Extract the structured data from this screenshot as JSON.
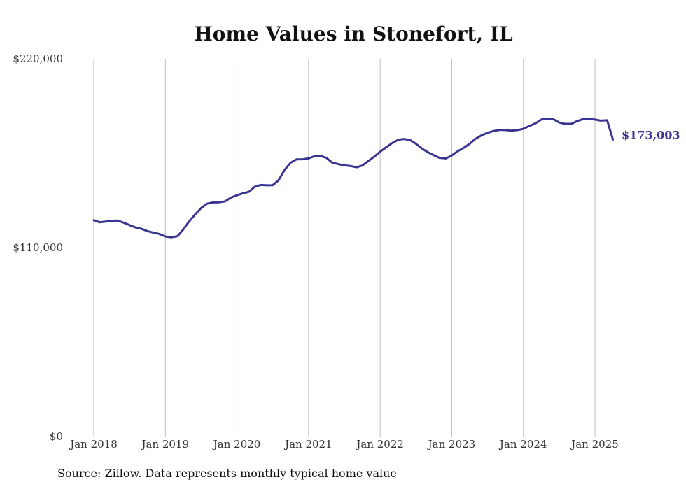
{
  "chart_data": {
    "type": "line",
    "title": "Home Values in Stonefort, IL",
    "source": "Source: Zillow. Data represents monthly typical home value",
    "ylim": [
      0,
      220000
    ],
    "y_ticks": [
      {
        "value": 0,
        "label": "$0"
      },
      {
        "value": 110000,
        "label": "$110,000"
      },
      {
        "value": 220000,
        "label": "$220,000"
      }
    ],
    "x_ticks": [
      {
        "value": 2018.0,
        "label": "Jan 2018"
      },
      {
        "value": 2019.0,
        "label": "Jan 2019"
      },
      {
        "value": 2020.0,
        "label": "Jan 2020"
      },
      {
        "value": 2021.0,
        "label": "Jan 2021"
      },
      {
        "value": 2022.0,
        "label": "Jan 2022"
      },
      {
        "value": 2023.0,
        "label": "Jan 2023"
      },
      {
        "value": 2024.0,
        "label": "Jan 2024"
      },
      {
        "value": 2025.0,
        "label": "Jan 2025"
      }
    ],
    "xlim": [
      2018.0,
      2025.25
    ],
    "grid": "vertical",
    "line_color": "#3a3491",
    "end_label": "$173,003",
    "series": [
      {
        "x": [
          2018.0,
          2018.08,
          2018.17,
          2018.25,
          2018.33,
          2018.42,
          2018.5,
          2018.58,
          2018.67,
          2018.75,
          2018.83,
          2018.92,
          2019.0,
          2019.08,
          2019.17,
          2019.25,
          2019.33,
          2019.42,
          2019.5,
          2019.58,
          2019.67,
          2019.75,
          2019.83,
          2019.92,
          2020.0,
          2020.08,
          2020.17,
          2020.25,
          2020.33,
          2020.42,
          2020.5,
          2020.58,
          2020.67,
          2020.75,
          2020.83,
          2020.92,
          2021.0,
          2021.08,
          2021.17,
          2021.25,
          2021.33,
          2021.42,
          2021.5,
          2021.58,
          2021.67,
          2021.75,
          2021.83,
          2021.92,
          2022.0,
          2022.08,
          2022.17,
          2022.25,
          2022.33,
          2022.42,
          2022.5,
          2022.58,
          2022.67,
          2022.75,
          2022.83,
          2022.92,
          2023.0,
          2023.08,
          2023.17,
          2023.25,
          2023.33,
          2023.42,
          2023.5,
          2023.58,
          2023.67,
          2023.75,
          2023.83,
          2023.92,
          2024.0,
          2024.08,
          2024.17,
          2024.25,
          2024.33,
          2024.42,
          2024.5,
          2024.58,
          2024.67,
          2024.75,
          2024.83,
          2024.92,
          2025.0,
          2025.08,
          2025.17,
          2025.25
        ],
        "y": [
          126000,
          124800,
          125200,
          125600,
          125800,
          124500,
          123100,
          121800,
          120900,
          119600,
          118800,
          117900,
          116500,
          116000,
          116700,
          120600,
          125100,
          129500,
          133000,
          135600,
          136300,
          136400,
          136900,
          139200,
          140500,
          141600,
          142600,
          145500,
          146500,
          146300,
          146400,
          149200,
          155500,
          159500,
          161400,
          161500,
          162000,
          163200,
          163400,
          162300,
          159600,
          158600,
          157900,
          157600,
          156800,
          157800,
          160300,
          163100,
          165900,
          168300,
          171000,
          172800,
          173300,
          172600,
          170500,
          167800,
          165500,
          163800,
          162300,
          162000,
          163700,
          166100,
          168200,
          170500,
          173400,
          175500,
          176900,
          177900,
          178600,
          178500,
          178100,
          178500,
          179200,
          180800,
          182400,
          184600,
          185200,
          184800,
          182900,
          182100,
          182100,
          183700,
          184800,
          185000,
          184600,
          184000,
          184200,
          173003
        ]
      }
    ]
  }
}
